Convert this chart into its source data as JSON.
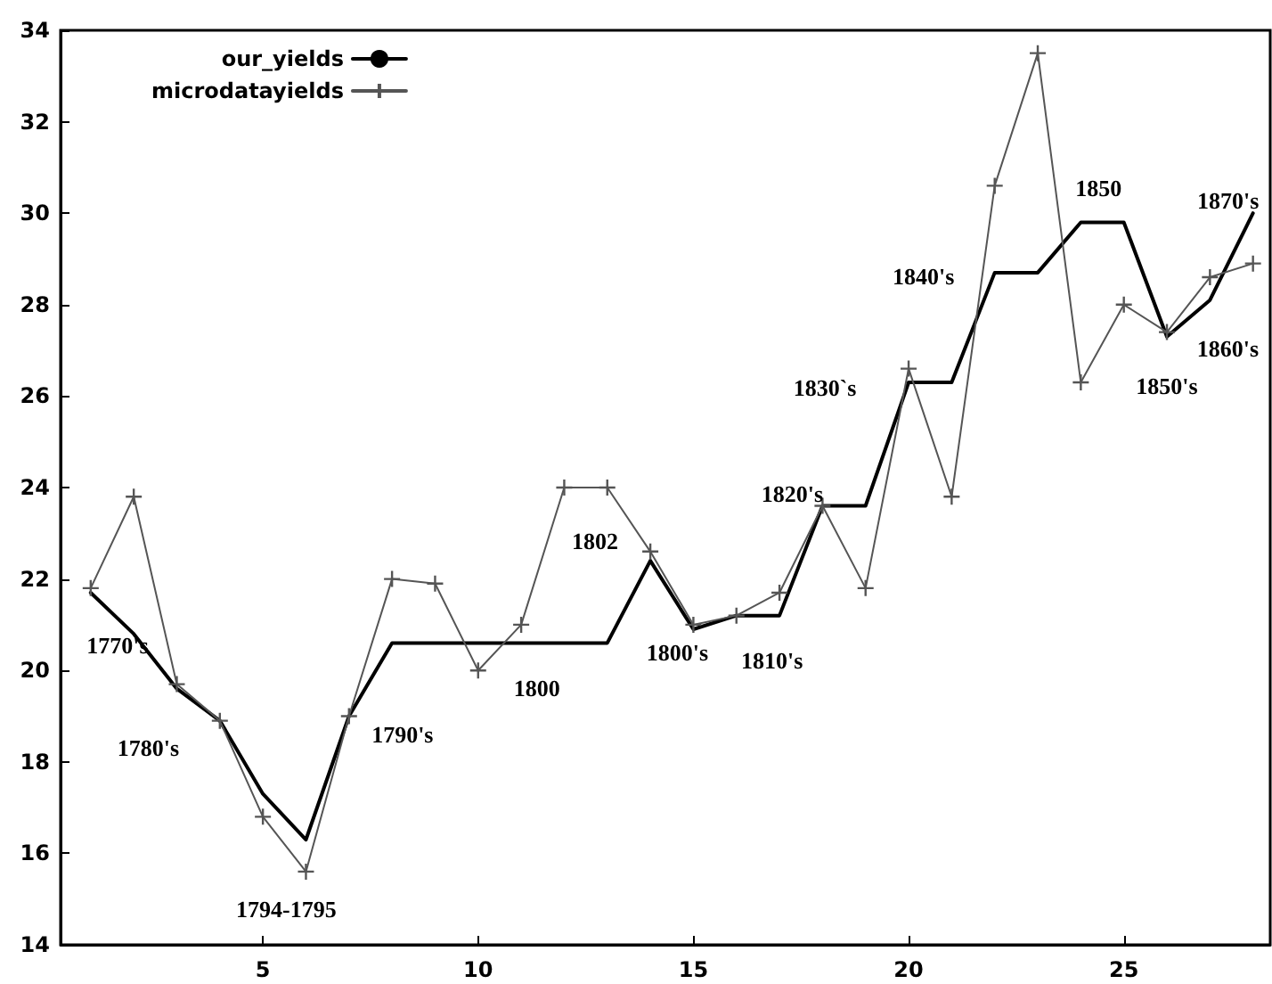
{
  "chart_data": {
    "type": "line",
    "x": [
      1,
      2,
      3,
      4,
      5,
      6,
      7,
      8,
      9,
      10,
      11,
      12,
      13,
      14,
      15,
      16,
      17,
      18,
      19,
      20,
      21,
      22,
      23,
      24,
      25,
      26,
      27,
      28
    ],
    "series": [
      {
        "name": "our_yields",
        "color": "#000000",
        "marker": "none",
        "values": [
          21.7,
          20.8,
          19.6,
          18.9,
          17.3,
          16.3,
          19.0,
          20.6,
          20.6,
          20.6,
          20.6,
          20.6,
          20.6,
          22.4,
          20.9,
          21.2,
          21.2,
          23.6,
          23.6,
          26.3,
          26.3,
          28.7,
          28.7,
          29.8,
          29.8,
          27.3,
          28.1,
          30.0
        ]
      },
      {
        "name": "microdatayields",
        "color": "#555555",
        "marker": "cross",
        "values": [
          21.8,
          23.8,
          19.7,
          18.9,
          16.8,
          15.6,
          19.0,
          22.0,
          21.9,
          20.0,
          21.0,
          24.0,
          24.0,
          22.6,
          21.0,
          21.2,
          21.7,
          23.6,
          21.8,
          26.6,
          23.8,
          30.6,
          33.5,
          26.3,
          28.0,
          27.4,
          28.6,
          28.9
        ]
      }
    ],
    "xlim": [
      0.3,
      28.4
    ],
    "xticks": [
      5,
      10,
      15,
      20,
      25
    ],
    "ylim": [
      14,
      34
    ],
    "yticks": [
      14,
      16,
      18,
      20,
      22,
      24,
      26,
      28,
      30,
      32,
      34
    ],
    "grid": false,
    "legend": "top left",
    "annotations": [
      {
        "text": "1770's",
        "x": 1,
        "y": 21.8
      },
      {
        "text": "1780's",
        "x": 3,
        "y": 19.6
      },
      {
        "text": "1794-1795",
        "x": 6,
        "y": 15.6
      },
      {
        "text": "1790's",
        "x": 7,
        "y": 19.0
      },
      {
        "text": "1800",
        "x": 10,
        "y": 20.0
      },
      {
        "text": "1802",
        "x": 14,
        "y": 22.6
      },
      {
        "text": "1800's",
        "x": 15,
        "y": 20.9
      },
      {
        "text": "1810's",
        "x": 16,
        "y": 21.2
      },
      {
        "text": "1820's",
        "x": 18,
        "y": 23.6
      },
      {
        "text": "1830`s",
        "x": 20,
        "y": 26.3
      },
      {
        "text": "1840's",
        "x": 22,
        "y": 28.7
      },
      {
        "text": "1850",
        "x": 24,
        "y": 29.8
      },
      {
        "text": "1870's",
        "x": 28,
        "y": 30.0
      },
      {
        "text": "1860's",
        "x": 27,
        "y": 28.1
      },
      {
        "text": "1850's",
        "x": 26,
        "y": 27.4
      }
    ]
  }
}
